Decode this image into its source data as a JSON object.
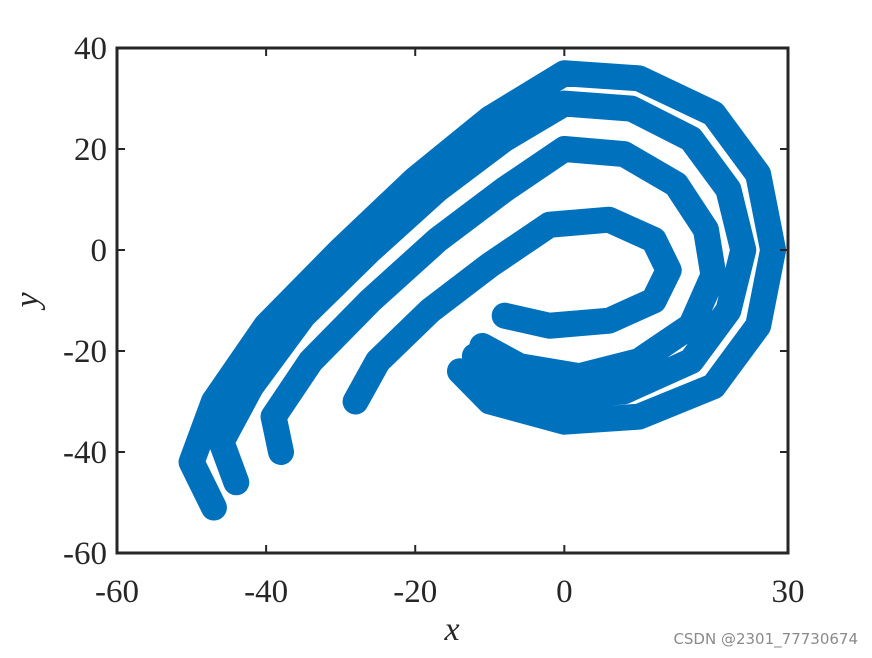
{
  "chart_data": {
    "type": "line",
    "x_label": "x",
    "y_label": "y",
    "watermark": "CSDN @2301_77730674",
    "xlim": [
      -60,
      30
    ],
    "xticks": [
      -60,
      -40,
      -20,
      0,
      30
    ],
    "ylim": [
      -60,
      40
    ],
    "yticks": [
      -60,
      -40,
      -20,
      0,
      20,
      40
    ],
    "grid": false,
    "series": [
      {
        "color": "#0072bd",
        "x": [
          -47,
          -50,
          -47,
          -40,
          -30,
          -20,
          -10,
          0,
          10,
          20,
          26,
          28,
          26,
          20,
          10,
          0,
          -10,
          -14,
          null,
          -44,
          -46,
          -42,
          -35,
          -26,
          -17,
          -8,
          0,
          9,
          17,
          22,
          24,
          22,
          17,
          8,
          0,
          -8,
          -12,
          null,
          -38,
          -39,
          -34,
          -26,
          -17,
          -8,
          0,
          8,
          15,
          19,
          20,
          17,
          10,
          2,
          -6,
          -11,
          null,
          -28,
          -25,
          -18,
          -10,
          -2,
          6,
          12,
          14,
          12,
          6,
          -2,
          -8
        ],
        "y": [
          -51,
          -42,
          -30,
          -15,
          0,
          14,
          26,
          35,
          34,
          27,
          15,
          0,
          -15,
          -27,
          -33,
          -34,
          -30,
          -24,
          null,
          -46,
          -38,
          -27,
          -13,
          0,
          12,
          22,
          29,
          28,
          22,
          12,
          0,
          -12,
          -22,
          -28,
          -29,
          -26,
          -21,
          null,
          -40,
          -33,
          -22,
          -10,
          2,
          12,
          20,
          19,
          13,
          4,
          -5,
          -15,
          -22,
          -25,
          -23,
          -19,
          null,
          -30,
          -22,
          -12,
          -3,
          5,
          6,
          2,
          -4,
          -10,
          -14,
          -15,
          -13
        ]
      }
    ]
  }
}
